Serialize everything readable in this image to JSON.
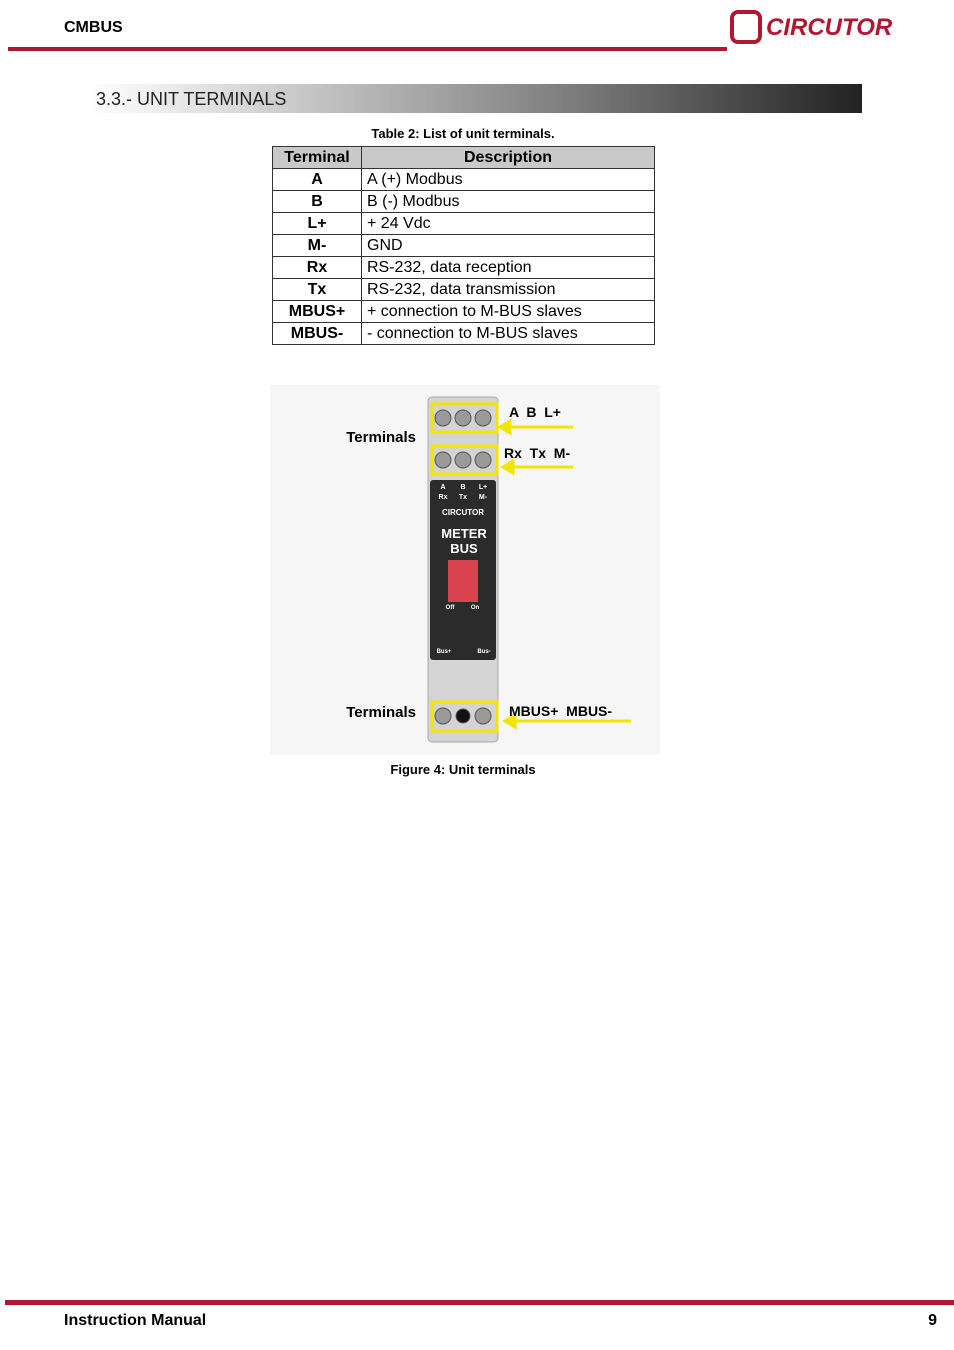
{
  "header": {
    "title": "CMBUS",
    "logo": "CIRCUTOR"
  },
  "section": {
    "title": "3.3.- UNIT TERMINALS"
  },
  "table": {
    "caption": "Table 2: List of unit terminals.",
    "columns": [
      "Terminal",
      "Description"
    ],
    "rows": [
      [
        "A",
        "A (+) Modbus"
      ],
      [
        "B",
        "B (-) Modbus"
      ],
      [
        "L+",
        "+ 24 Vdc"
      ],
      [
        "M-",
        "GND"
      ],
      [
        "Rx",
        "RS-232, data reception"
      ],
      [
        "Tx",
        "RS-232, data transmission"
      ],
      [
        "MBUS+",
        "+ connection to M-BUS slaves"
      ],
      [
        "MBUS-",
        "- connection to M-BUS slaves"
      ]
    ]
  },
  "figure": {
    "top_label": "Terminals",
    "bottom_label": "Terminals",
    "callouts": [
      "A  B  L+",
      "Rx  Tx  M-",
      "MBUS+  MBUS-"
    ],
    "device_text": [
      "A",
      "B",
      "L+",
      "Rx",
      "Tx",
      "M-",
      "CIRCUTOR",
      "METER",
      "BUS",
      "Off",
      "On",
      "Bus+",
      "Bus-"
    ],
    "caption": "Figure 4: Unit terminals"
  },
  "footer": {
    "title": "Instruction Manual",
    "page": "9"
  }
}
